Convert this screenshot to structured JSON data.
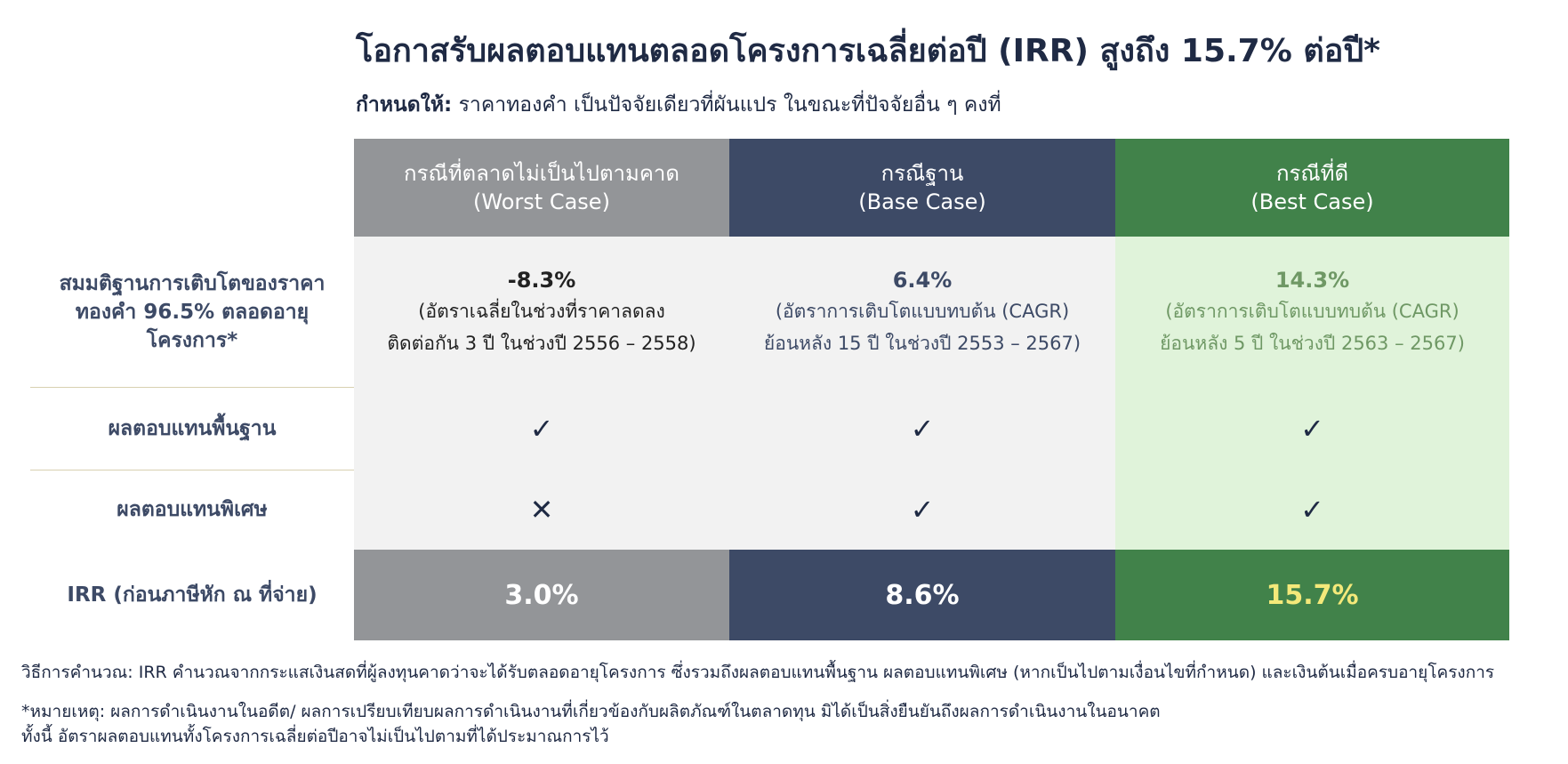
{
  "header": {
    "title": "โอกาสรับผลตอบแทนตลอดโครงการเฉลี่ยต่อปี (IRR) สูงถึง 15.7% ต่อปี*",
    "subtitle_label": "กำหนดให้:",
    "subtitle_text": "ราคาทองคำ เป็นปัจจัยเดียวที่ผันแปร ในขณะที่ปัจจัยอื่น ๆ คงที่"
  },
  "table": {
    "columns": [
      {
        "name": "กรณีที่ตลาดไม่เป็นไปตามคาด",
        "en": "(Worst Case)"
      },
      {
        "name": "กรณีฐาน",
        "en": "(Base Case)"
      },
      {
        "name": "กรณีที่ดี",
        "en": "(Best Case)"
      }
    ],
    "rows": [
      {
        "label": "สมมติฐานการเติบโตของราคาทองคำ 96.5% ตลอดอายุโครงการ*",
        "cells": [
          {
            "value": "-8.3%",
            "line1": "(อัตราเฉลี่ยในช่วงที่ราคาลดลง",
            "line2": "ติดต่อกัน 3 ปี ในช่วงปี 2556 – 2558)"
          },
          {
            "value": "6.4%",
            "line1": "(อัตราการเติบโตแบบทบต้น (CAGR)",
            "line2": "ย้อนหลัง 15 ปี ในช่วงปี 2553 – 2567)"
          },
          {
            "value": "14.3%",
            "line1": "(อัตราการเติบโตแบบทบต้น (CAGR)",
            "line2": "ย้อนหลัง 5 ปี ในช่วงปี 2563 – 2567)"
          }
        ]
      },
      {
        "label": "ผลตอบแทนพื้นฐาน",
        "cells": [
          "✓",
          "✓",
          "✓"
        ]
      },
      {
        "label": "ผลตอบแทนพิเศษ",
        "cells": [
          "✕",
          "✓",
          "✓"
        ]
      },
      {
        "label": "IRR (ก่อนภาษีหัก ณ ที่จ่าย)",
        "cells": [
          "3.0%",
          "8.6%",
          "15.7%"
        ]
      }
    ]
  },
  "footnotes": [
    "วิธีการคำนวณ: IRR คำนวณจากกระแสเงินสดที่ผู้ลงทุนคาดว่าจะได้รับตลอดอายุโครงการ ซึ่งรวมถึงผลตอบแทนพื้นฐาน ผลตอบแทนพิเศษ (หากเป็นไปตามเงื่อนไขที่กำหนด) และเงินต้นเมื่อครบอายุโครงการ",
    "*หมายเหตุ: ผลการดำเนินงานในอดีต/ ผลการเปรียบเทียบผลการดำเนินงานที่เกี่ยวข้องกับผลิตภัณฑ์ในตลาดทุน มิได้เป็นสิ่งยืนยันถึงผลการดำเนินงานในอนาคต",
    "ทั้งนี้ อัตราผลตอบแทนทั้งโครงการเฉลี่ยต่อปีอาจไม่เป็นไปตามที่ได้ประมาณการไว้"
  ]
}
